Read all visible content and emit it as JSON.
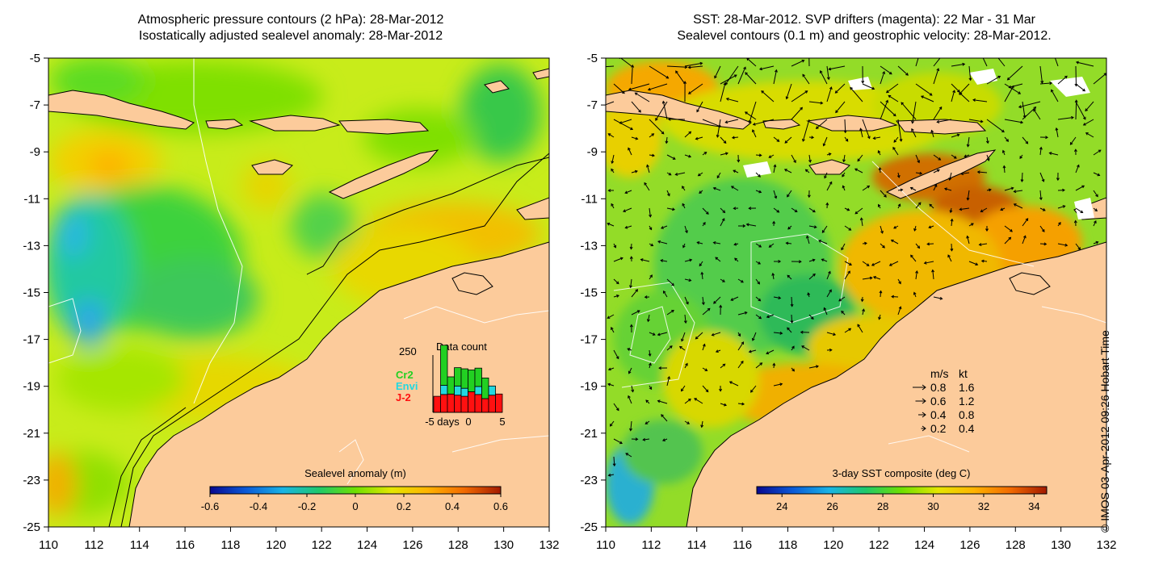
{
  "left_panel": {
    "title_line1": "Atmospheric pressure contours (2 hPa): 28-Mar-2012",
    "title_line2": "Isostatically adjusted sealevel anomaly: 28-Mar-2012",
    "colorbar": {
      "label": "Sealevel anomaly (m)",
      "ticks": [
        "-0.6",
        "-0.4",
        "-0.2",
        "0",
        "0.2",
        "0.4",
        "0.6"
      ],
      "range": [
        -0.6,
        0.6
      ],
      "colors": [
        "#08088f",
        "#0a5ad8",
        "#19b4e6",
        "#1fc96b",
        "#6fe000",
        "#e5e600",
        "#ffb300",
        "#f26a00",
        "#a31a00"
      ]
    },
    "inset": {
      "title": "Data count",
      "ymax_label": "250",
      "xticks": [
        "-5",
        "days",
        "0",
        "5"
      ],
      "series": [
        {
          "name": "Cr2",
          "color": "#22d022"
        },
        {
          "name": "Envi",
          "color": "#22d8e0"
        },
        {
          "name": "J-2",
          "color": "#ff1010"
        }
      ],
      "ymax": 250,
      "days": [
        -5,
        -4,
        -3,
        -2,
        -1,
        0,
        1,
        2,
        3,
        4
      ],
      "j2": [
        70,
        78,
        80,
        75,
        70,
        90,
        78,
        60,
        75,
        80
      ],
      "envi": [
        0,
        40,
        0,
        40,
        35,
        0,
        35,
        0,
        40,
        0
      ],
      "cr2": [
        0,
        175,
        75,
        80,
        85,
        95,
        80,
        90,
        0,
        0
      ]
    }
  },
  "right_panel": {
    "title_line1": "SST: 28-Mar-2012. SVP drifters (magenta): 22 Mar - 31 Mar",
    "title_line2": "Sealevel contours (0.1 m) and geostrophic velocity: 28-Mar-2012.",
    "colorbar": {
      "label": "3-day SST composite (deg C)",
      "ticks": [
        "24",
        "26",
        "28",
        "30",
        "32",
        "34"
      ],
      "range": [
        23,
        34.5
      ],
      "colors": [
        "#08088f",
        "#0a5ad8",
        "#19b4e6",
        "#1fc96b",
        "#6fe000",
        "#e5e600",
        "#ffb300",
        "#f26a00",
        "#a31a00"
      ]
    },
    "velocity_legend": {
      "header_ms": "m/s",
      "header_kt": "kt",
      "rows": [
        {
          "ms": "0.8",
          "kt": "1.6"
        },
        {
          "ms": "0.6",
          "kt": "1.2"
        },
        {
          "ms": "0.4",
          "kt": "0.8"
        },
        {
          "ms": "0.2",
          "kt": "0.4"
        }
      ]
    }
  },
  "axes": {
    "xticks": [
      "110",
      "112",
      "114",
      "116",
      "118",
      "120",
      "122",
      "124",
      "126",
      "128",
      "130",
      "132"
    ],
    "yticks": [
      "-5",
      "-7",
      "-9",
      "-11",
      "-13",
      "-15",
      "-17",
      "-19",
      "-21",
      "-23",
      "-25"
    ],
    "lon_range": [
      110,
      132
    ],
    "lat_range": [
      -25,
      -5
    ]
  },
  "colors": {
    "land": "#fccb9b",
    "sea_base_left": "#c8ec1a",
    "sea_base_right": "#93dc28"
  },
  "copyright": "© IMOS 03-Apr-2012 09:26 Hobart Time"
}
